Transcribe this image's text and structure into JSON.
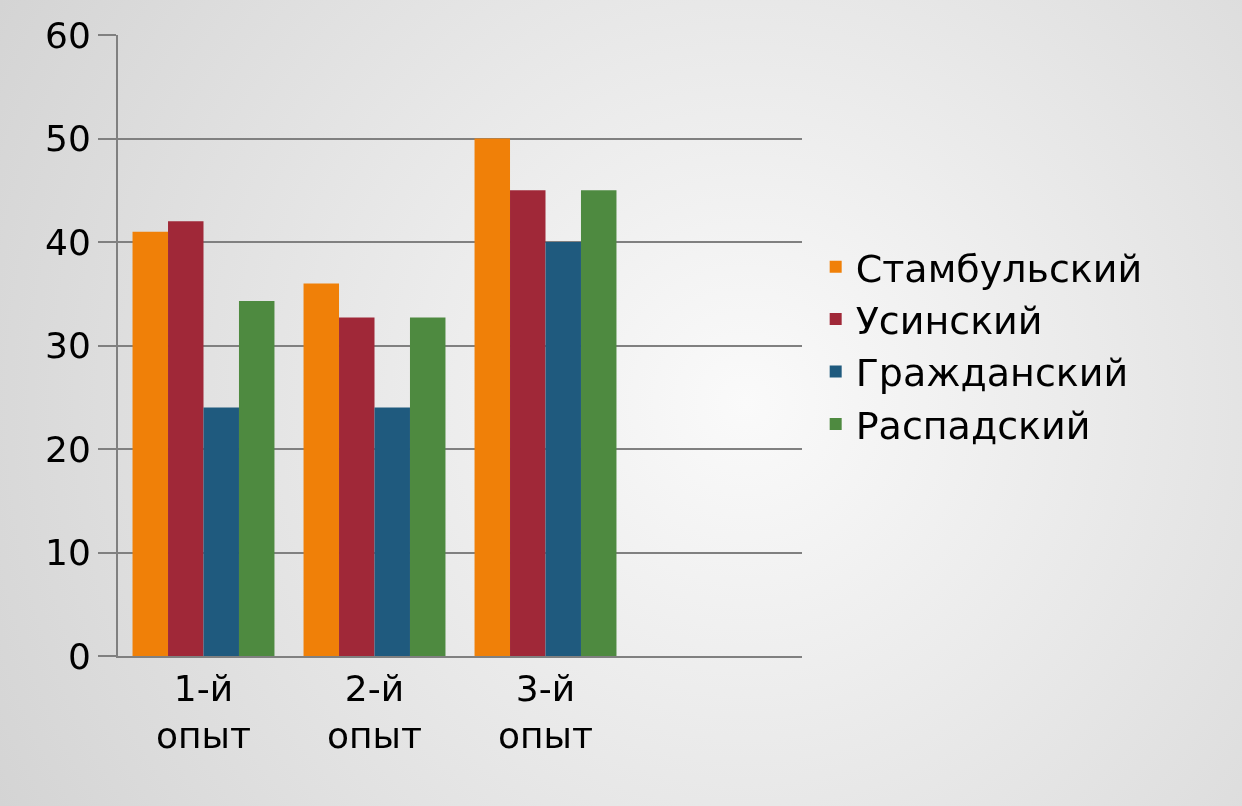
{
  "chart_data": {
    "type": "bar",
    "categories": [
      "1-й опыт",
      "2-й опыт",
      "3-й опыт",
      null
    ],
    "series": [
      {
        "name": "Стамбульский",
        "color": "#f08008",
        "values": [
          41,
          36,
          50,
          null
        ]
      },
      {
        "name": "Усинский",
        "color": "#a02838",
        "values": [
          42,
          32.7,
          45,
          null
        ]
      },
      {
        "name": "Гражданский",
        "color": "#1f5a7e",
        "values": [
          24,
          24,
          40,
          null
        ]
      },
      {
        "name": "Распадский",
        "color": "#4e8a40",
        "values": [
          34.3,
          32.7,
          45,
          null
        ]
      }
    ],
    "ylim": [
      0,
      60
    ],
    "yticks": [
      0,
      10,
      20,
      30,
      40,
      50,
      60
    ],
    "grid": "y",
    "legend": "right"
  }
}
